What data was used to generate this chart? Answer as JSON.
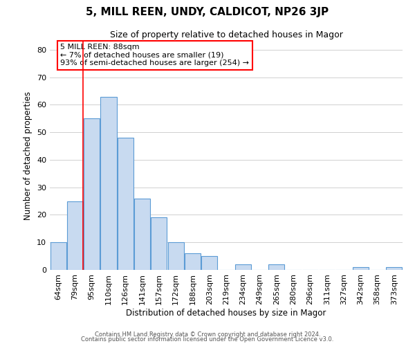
{
  "title": "5, MILL REEN, UNDY, CALDICOT, NP26 3JP",
  "subtitle": "Size of property relative to detached houses in Magor",
  "xlabel": "Distribution of detached houses by size in Magor",
  "ylabel": "Number of detached properties",
  "bar_labels": [
    "64sqm",
    "79sqm",
    "95sqm",
    "110sqm",
    "126sqm",
    "141sqm",
    "157sqm",
    "172sqm",
    "188sqm",
    "203sqm",
    "219sqm",
    "234sqm",
    "249sqm",
    "265sqm",
    "280sqm",
    "296sqm",
    "311sqm",
    "327sqm",
    "342sqm",
    "358sqm",
    "373sqm"
  ],
  "bar_values": [
    10,
    25,
    55,
    63,
    48,
    26,
    19,
    10,
    6,
    5,
    0,
    2,
    0,
    2,
    0,
    0,
    0,
    0,
    1,
    0,
    1
  ],
  "bar_color": "#c8daf0",
  "bar_edge_color": "#5b9bd5",
  "vline_color": "red",
  "annotation_title": "5 MILL REEN: 88sqm",
  "annotation_line1": "← 7% of detached houses are smaller (19)",
  "annotation_line2": "93% of semi-detached houses are larger (254) →",
  "annotation_box_color": "white",
  "annotation_box_edge": "red",
  "ylim": [
    0,
    83
  ],
  "yticks": [
    0,
    10,
    20,
    30,
    40,
    50,
    60,
    70,
    80
  ],
  "footer1": "Contains HM Land Registry data © Crown copyright and database right 2024.",
  "footer2": "Contains public sector information licensed under the Open Government Licence v3.0."
}
